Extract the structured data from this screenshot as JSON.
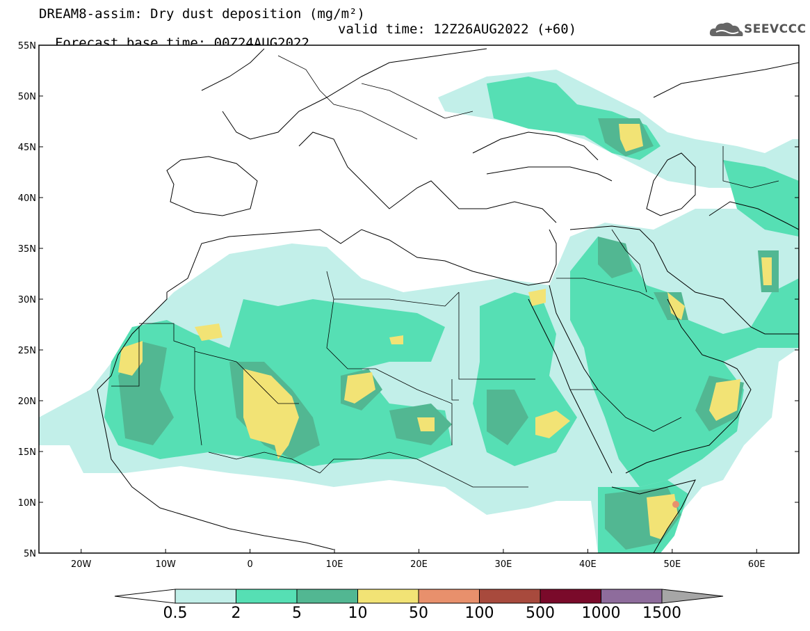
{
  "header": {
    "title": "DREAM8-assim: Dry dust deposition (mg/m²)",
    "base_time": "Forecast base time: 00Z24AUG2022",
    "valid_time": "valid time: 12Z26AUG2022 (+60)"
  },
  "logo": {
    "text": "SEEVCCC",
    "icon": "cloud-logo-icon"
  },
  "map": {
    "lon_range": [
      -25,
      65
    ],
    "lat_range": [
      5,
      55
    ],
    "lat_ticks": [
      {
        "value": 55,
        "label": "55N"
      },
      {
        "value": 50,
        "label": "50N"
      },
      {
        "value": 45,
        "label": "45N"
      },
      {
        "value": 40,
        "label": "40N"
      },
      {
        "value": 35,
        "label": "35N"
      },
      {
        "value": 30,
        "label": "30N"
      },
      {
        "value": 25,
        "label": "25N"
      },
      {
        "value": 20,
        "label": "20N"
      },
      {
        "value": 15,
        "label": "15N"
      },
      {
        "value": 10,
        "label": "10N"
      },
      {
        "value": 5,
        "label": "5N"
      }
    ],
    "lon_ticks": [
      {
        "value": -20,
        "label": "20W"
      },
      {
        "value": -10,
        "label": "10W"
      },
      {
        "value": 0,
        "label": "0"
      },
      {
        "value": 10,
        "label": "10E"
      },
      {
        "value": 20,
        "label": "20E"
      },
      {
        "value": 30,
        "label": "30E"
      },
      {
        "value": 40,
        "label": "40E"
      },
      {
        "value": 50,
        "label": "50E"
      },
      {
        "value": 60,
        "label": "60E"
      }
    ]
  },
  "colorbar": {
    "levels": [
      "0.5",
      "2",
      "5",
      "10",
      "50",
      "100",
      "500",
      "1000",
      "1500"
    ],
    "colors": [
      "#c2efe9",
      "#56dfb4",
      "#52b792",
      "#f2e375",
      "#e8906c",
      "#a84a3d",
      "#7a0a2a",
      "#8e6c9c",
      "#a6a6a6"
    ]
  }
}
